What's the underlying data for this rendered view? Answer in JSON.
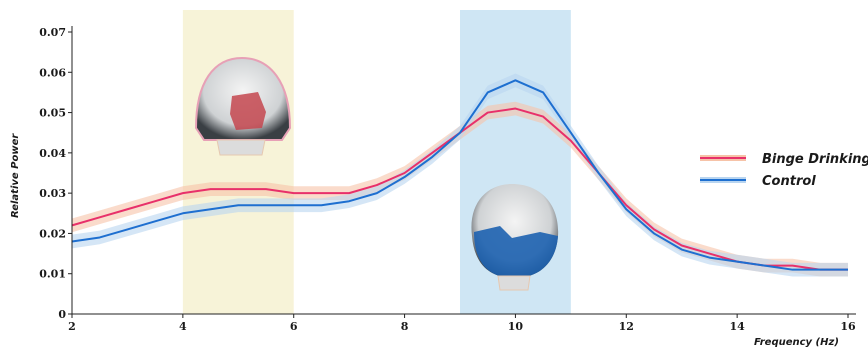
{
  "chart_data": {
    "type": "line",
    "xlabel": "Frequency (Hz)",
    "ylabel": "Relative Power",
    "xlim": [
      2,
      16
    ],
    "ylim": [
      0,
      0.07
    ],
    "x_ticks": [
      "2",
      "4",
      "6",
      "8",
      "10",
      "12",
      "14",
      "16"
    ],
    "y_ticks": [
      "0",
      "0.01",
      "0.02",
      "0.03",
      "0.04",
      "0.05",
      "0.06",
      "0.07"
    ],
    "highlight_bands": [
      {
        "x_range": [
          4,
          6
        ],
        "color": "#f7f3d8"
      },
      {
        "x_range": [
          9,
          11
        ],
        "color": "#cfe6f4"
      }
    ],
    "legend_position": "right",
    "series": [
      {
        "name": "Binge Drinking",
        "color": "#e8306a",
        "band_color": "#f6c3a8",
        "x": [
          2,
          2.5,
          3,
          3.5,
          4,
          4.5,
          5,
          5.5,
          6,
          6.5,
          7,
          7.5,
          8,
          8.5,
          9,
          9.5,
          10,
          10.5,
          11,
          11.5,
          12,
          12.5,
          13,
          13.5,
          14,
          14.5,
          15,
          15.5,
          16
        ],
        "values": [
          0.022,
          0.024,
          0.026,
          0.028,
          0.03,
          0.031,
          0.031,
          0.031,
          0.03,
          0.03,
          0.03,
          0.032,
          0.035,
          0.04,
          0.045,
          0.05,
          0.051,
          0.049,
          0.043,
          0.035,
          0.027,
          0.021,
          0.017,
          0.015,
          0.013,
          0.012,
          0.012,
          0.011,
          0.011
        ]
      },
      {
        "name": "Control",
        "color": "#1e6fd0",
        "band_color": "#b9d5f0",
        "x": [
          2,
          2.5,
          3,
          3.5,
          4,
          4.5,
          5,
          5.5,
          6,
          6.5,
          7,
          7.5,
          8,
          8.5,
          9,
          9.5,
          10,
          10.5,
          11,
          11.5,
          12,
          12.5,
          13,
          13.5,
          14,
          14.5,
          15,
          15.5,
          16
        ],
        "values": [
          0.018,
          0.019,
          0.021,
          0.023,
          0.025,
          0.026,
          0.027,
          0.027,
          0.027,
          0.027,
          0.028,
          0.03,
          0.034,
          0.039,
          0.045,
          0.055,
          0.058,
          0.055,
          0.045,
          0.035,
          0.026,
          0.02,
          0.016,
          0.014,
          0.013,
          0.012,
          0.011,
          0.011,
          0.011
        ]
      }
    ]
  }
}
